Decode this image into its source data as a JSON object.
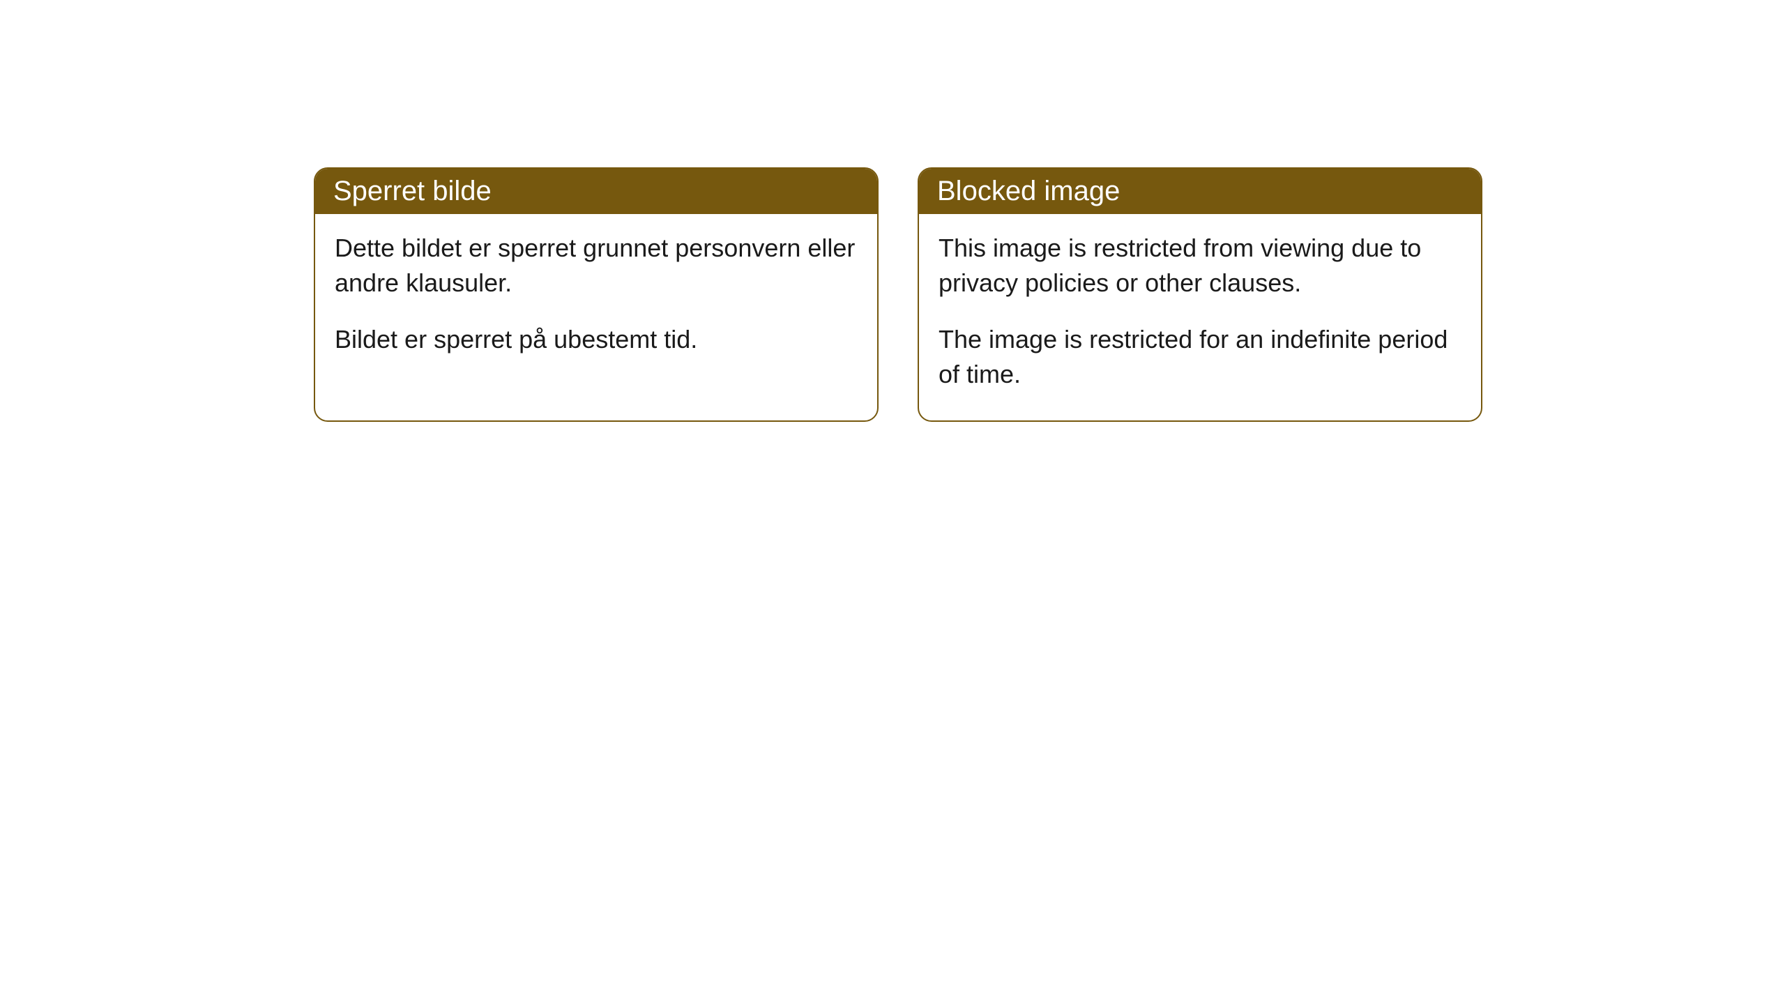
{
  "cards": [
    {
      "title": "Sperret bilde",
      "paragraph1": "Dette bildet er sperret grunnet personvern eller andre klausuler.",
      "paragraph2": "Bildet er sperret på ubestemt tid."
    },
    {
      "title": "Blocked image",
      "paragraph1": "This image is restricted from viewing due to privacy policies or other clauses.",
      "paragraph2": "The image is restricted for an indefinite period of time."
    }
  ],
  "styling": {
    "header_bg_color": "#76580e",
    "header_text_color": "#ffffff",
    "border_color": "#76580e",
    "body_text_color": "#1a1a1a",
    "card_bg_color": "#ffffff",
    "border_radius": 20,
    "header_fontsize": 40,
    "body_fontsize": 36
  }
}
